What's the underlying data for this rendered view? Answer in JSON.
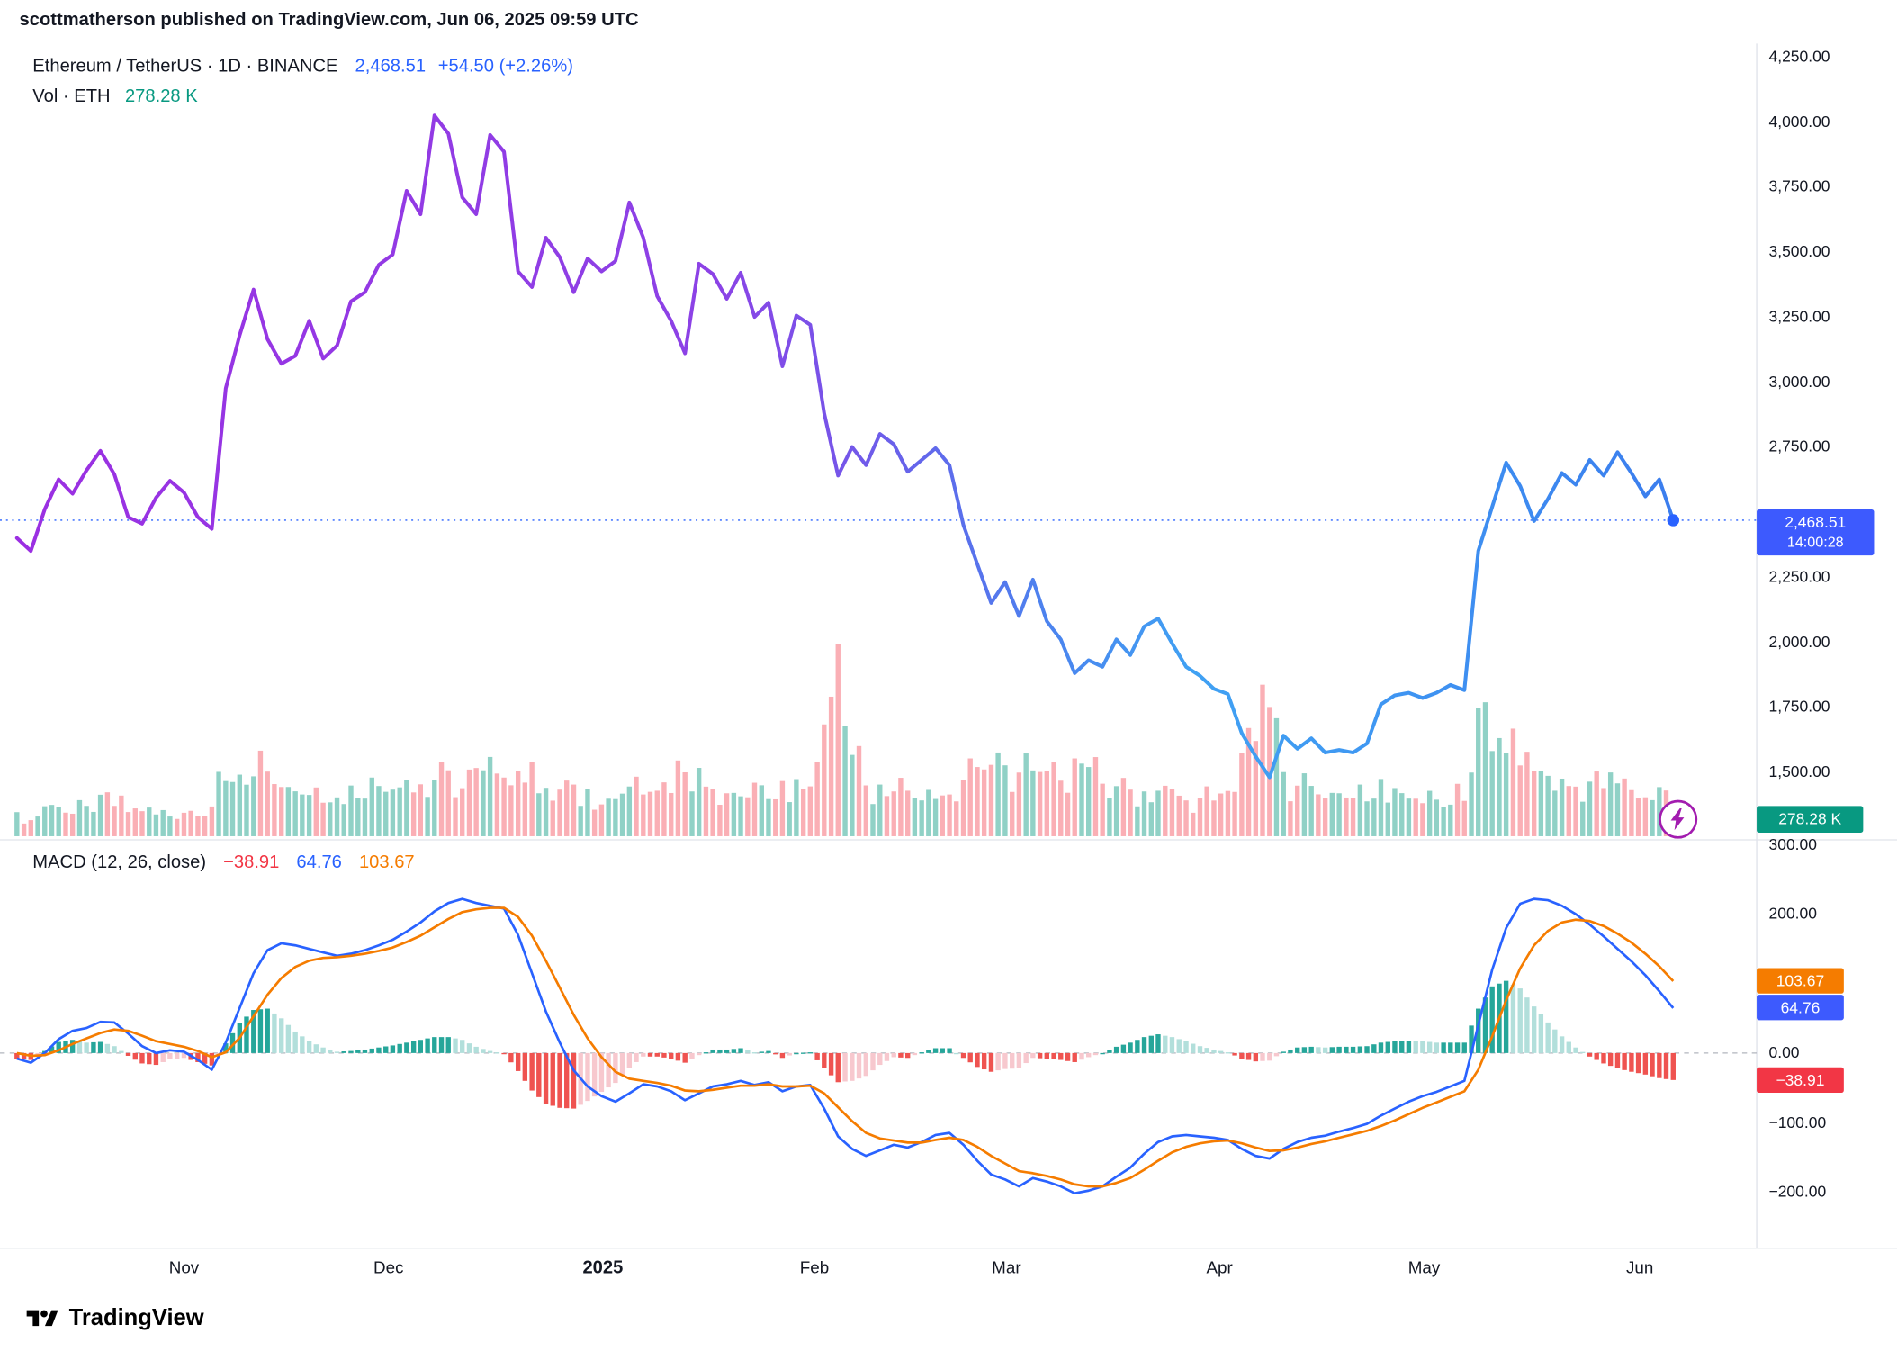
{
  "header": {
    "published": "scottmatherson published on TradingView.com, Jun 06, 2025 09:59 UTC"
  },
  "legend": {
    "symbol": "Ethereum / TetherUS · 1D · BINANCE",
    "price": "2,468.51",
    "change": "+54.50 (+2.26%)",
    "vol_label": "Vol · ETH",
    "vol_value": "278.28 K"
  },
  "macd_legend": {
    "title": "MACD (12, 26, close)",
    "hist": "−38.91",
    "macd": "64.76",
    "signal": "103.67"
  },
  "badges": {
    "price": "2,468.51",
    "countdown": "14:00:28",
    "volume": "278.28 K",
    "macd_signal": "103.67",
    "macd_line": "64.76",
    "macd_hist": "−38.91"
  },
  "footer": {
    "brand": "TradingView"
  },
  "colors": {
    "accent_blue": "#2962FF",
    "badge_blue": "#3D5AFE",
    "teal": "#089981",
    "red": "#F23645",
    "orange": "#F57C00",
    "purple": "#9B2FE2",
    "hist_up": "#26A69A",
    "hist_up_light": "#B2DFDB",
    "hist_down": "#EF5350",
    "hist_down_light": "#F7C8CE"
  },
  "chart_data": {
    "type": "line",
    "title": "Ethereum / TetherUS · 1D · BINANCE",
    "interval": "1D",
    "exchange": "BINANCE",
    "last_price": 2468.51,
    "price_change": "+54.50 (+2.26%)",
    "volume_last_k": 278.28,
    "macd_settings": "12, 26, close",
    "macd_last": {
      "hist": -38.91,
      "macd": 64.76,
      "signal": 103.67
    },
    "price_ylim": [
      1245,
      4250
    ],
    "macd_ylim": [
      -250,
      300
    ],
    "y_ticks_price": [
      4250,
      4000,
      3750,
      3500,
      3250,
      3000,
      2750,
      2250,
      2000,
      1750,
      1500
    ],
    "y_ticks_macd": [
      300,
      200,
      0,
      -100,
      -200
    ],
    "x_ticks": [
      {
        "label": "Nov",
        "i": 12
      },
      {
        "label": "Dec",
        "i": 26.7
      },
      {
        "label": "2025",
        "i": 42.1,
        "bold": true
      },
      {
        "label": "Feb",
        "i": 57.3
      },
      {
        "label": "Mar",
        "i": 71.1
      },
      {
        "label": "Apr",
        "i": 86.4
      },
      {
        "label": "May",
        "i": 101.1
      },
      {
        "label": "Jun",
        "i": 116.6
      }
    ],
    "series": {
      "price": [
        2400,
        2350,
        2510,
        2625,
        2570,
        2660,
        2735,
        2645,
        2480,
        2455,
        2555,
        2620,
        2575,
        2480,
        2435,
        2975,
        3180,
        3355,
        3165,
        3070,
        3100,
        3235,
        3090,
        3140,
        3310,
        3345,
        3450,
        3490,
        3735,
        3645,
        4025,
        3955,
        3710,
        3645,
        3950,
        3885,
        3425,
        3365,
        3555,
        3480,
        3345,
        3475,
        3425,
        3465,
        3690,
        3555,
        3330,
        3235,
        3110,
        3455,
        3415,
        3320,
        3420,
        3250,
        3305,
        3060,
        3255,
        3220,
        2880,
        2640,
        2750,
        2680,
        2800,
        2760,
        2655,
        2700,
        2745,
        2680,
        2450,
        2300,
        2150,
        2230,
        2100,
        2240,
        2080,
        2010,
        1880,
        1930,
        1905,
        2010,
        1950,
        2060,
        2090,
        1995,
        1905,
        1870,
        1820,
        1800,
        1650,
        1560,
        1480,
        1640,
        1590,
        1630,
        1575,
        1585,
        1575,
        1610,
        1760,
        1795,
        1805,
        1785,
        1805,
        1835,
        1815,
        2350,
        2520,
        2690,
        2600,
        2465,
        2550,
        2650,
        2605,
        2700,
        2640,
        2730,
        2650,
        2560,
        2625,
        2468.51
      ],
      "volume_k": [
        180,
        150,
        220,
        260,
        200,
        240,
        310,
        280,
        230,
        190,
        210,
        180,
        230,
        200,
        260,
        520,
        580,
        560,
        480,
        420,
        350,
        380,
        330,
        360,
        400,
        370,
        420,
        390,
        450,
        420,
        480,
        520,
        460,
        580,
        640,
        540,
        620,
        580,
        420,
        380,
        410,
        350,
        310,
        330,
        420,
        380,
        350,
        390,
        560,
        610,
        420,
        380,
        350,
        400,
        330,
        480,
        420,
        380,
        900,
        1650,
        620,
        480,
        420,
        380,
        350,
        330,
        310,
        340,
        480,
        560,
        620,
        540,
        580,
        520,
        480,
        460,
        640,
        560,
        420,
        380,
        360,
        400,
        370,
        350,
        330,
        310,
        340,
        380,
        620,
        700,
        1150,
        560,
        420,
        380,
        350,
        320,
        300,
        330,
        420,
        360,
        320,
        300,
        290,
        310,
        330,
        980,
        820,
        720,
        580,
        520,
        480,
        440,
        420,
        460,
        400,
        440,
        380,
        350,
        420,
        278.28
      ],
      "macd": [
        -8,
        -14,
        0,
        20,
        32,
        36,
        45,
        44,
        28,
        10,
        0,
        4,
        2,
        -10,
        -24,
        15,
        65,
        115,
        148,
        158,
        155,
        150,
        145,
        140,
        143,
        148,
        155,
        163,
        175,
        188,
        204,
        216,
        222,
        216,
        212,
        208,
        170,
        115,
        60,
        15,
        -25,
        -48,
        -62,
        -70,
        -58,
        -45,
        -48,
        -55,
        -68,
        -58,
        -48,
        -45,
        -40,
        -46,
        -42,
        -55,
        -48,
        -46,
        -80,
        -120,
        -138,
        -148,
        -140,
        -132,
        -136,
        -128,
        -118,
        -115,
        -132,
        -155,
        -175,
        -182,
        -192,
        -180,
        -185,
        -192,
        -202,
        -198,
        -192,
        -178,
        -165,
        -145,
        -128,
        -120,
        -118,
        -120,
        -122,
        -125,
        -138,
        -148,
        -152,
        -138,
        -128,
        -122,
        -119,
        -113,
        -108,
        -102,
        -90,
        -80,
        -70,
        -62,
        -56,
        -48,
        -40,
        40,
        120,
        180,
        215,
        222,
        220,
        212,
        200,
        185,
        168,
        150,
        132,
        112,
        89,
        64.76
      ],
      "signal": [
        0,
        -4,
        -3,
        4,
        13,
        21,
        29,
        34,
        32,
        25,
        17,
        13,
        9,
        3,
        -6,
        1,
        22,
        53,
        84,
        108,
        124,
        133,
        137,
        138,
        140,
        143,
        147,
        152,
        160,
        169,
        181,
        193,
        203,
        207,
        209,
        209,
        196,
        169,
        133,
        94,
        55,
        21,
        -6,
        -27,
        -37,
        -40,
        -43,
        -47,
        -54,
        -55,
        -53,
        -50,
        -47,
        -47,
        -45,
        -48,
        -48,
        -47,
        -58,
        -78,
        -98,
        -115,
        -123,
        -126,
        -129,
        -129,
        -125,
        -122,
        -125,
        -135,
        -148,
        -159,
        -170,
        -173,
        -177,
        -182,
        -189,
        -192,
        -192,
        -187,
        -180,
        -168,
        -155,
        -143,
        -135,
        -130,
        -127,
        -126,
        -130,
        -136,
        -141,
        -140,
        -136,
        -131,
        -127,
        -122,
        -117,
        -112,
        -105,
        -97,
        -88,
        -79,
        -71,
        -63,
        -55,
        -24,
        24,
        76,
        122,
        155,
        176,
        188,
        192,
        190,
        183,
        172,
        159,
        143,
        125,
        103.67
      ]
    }
  }
}
